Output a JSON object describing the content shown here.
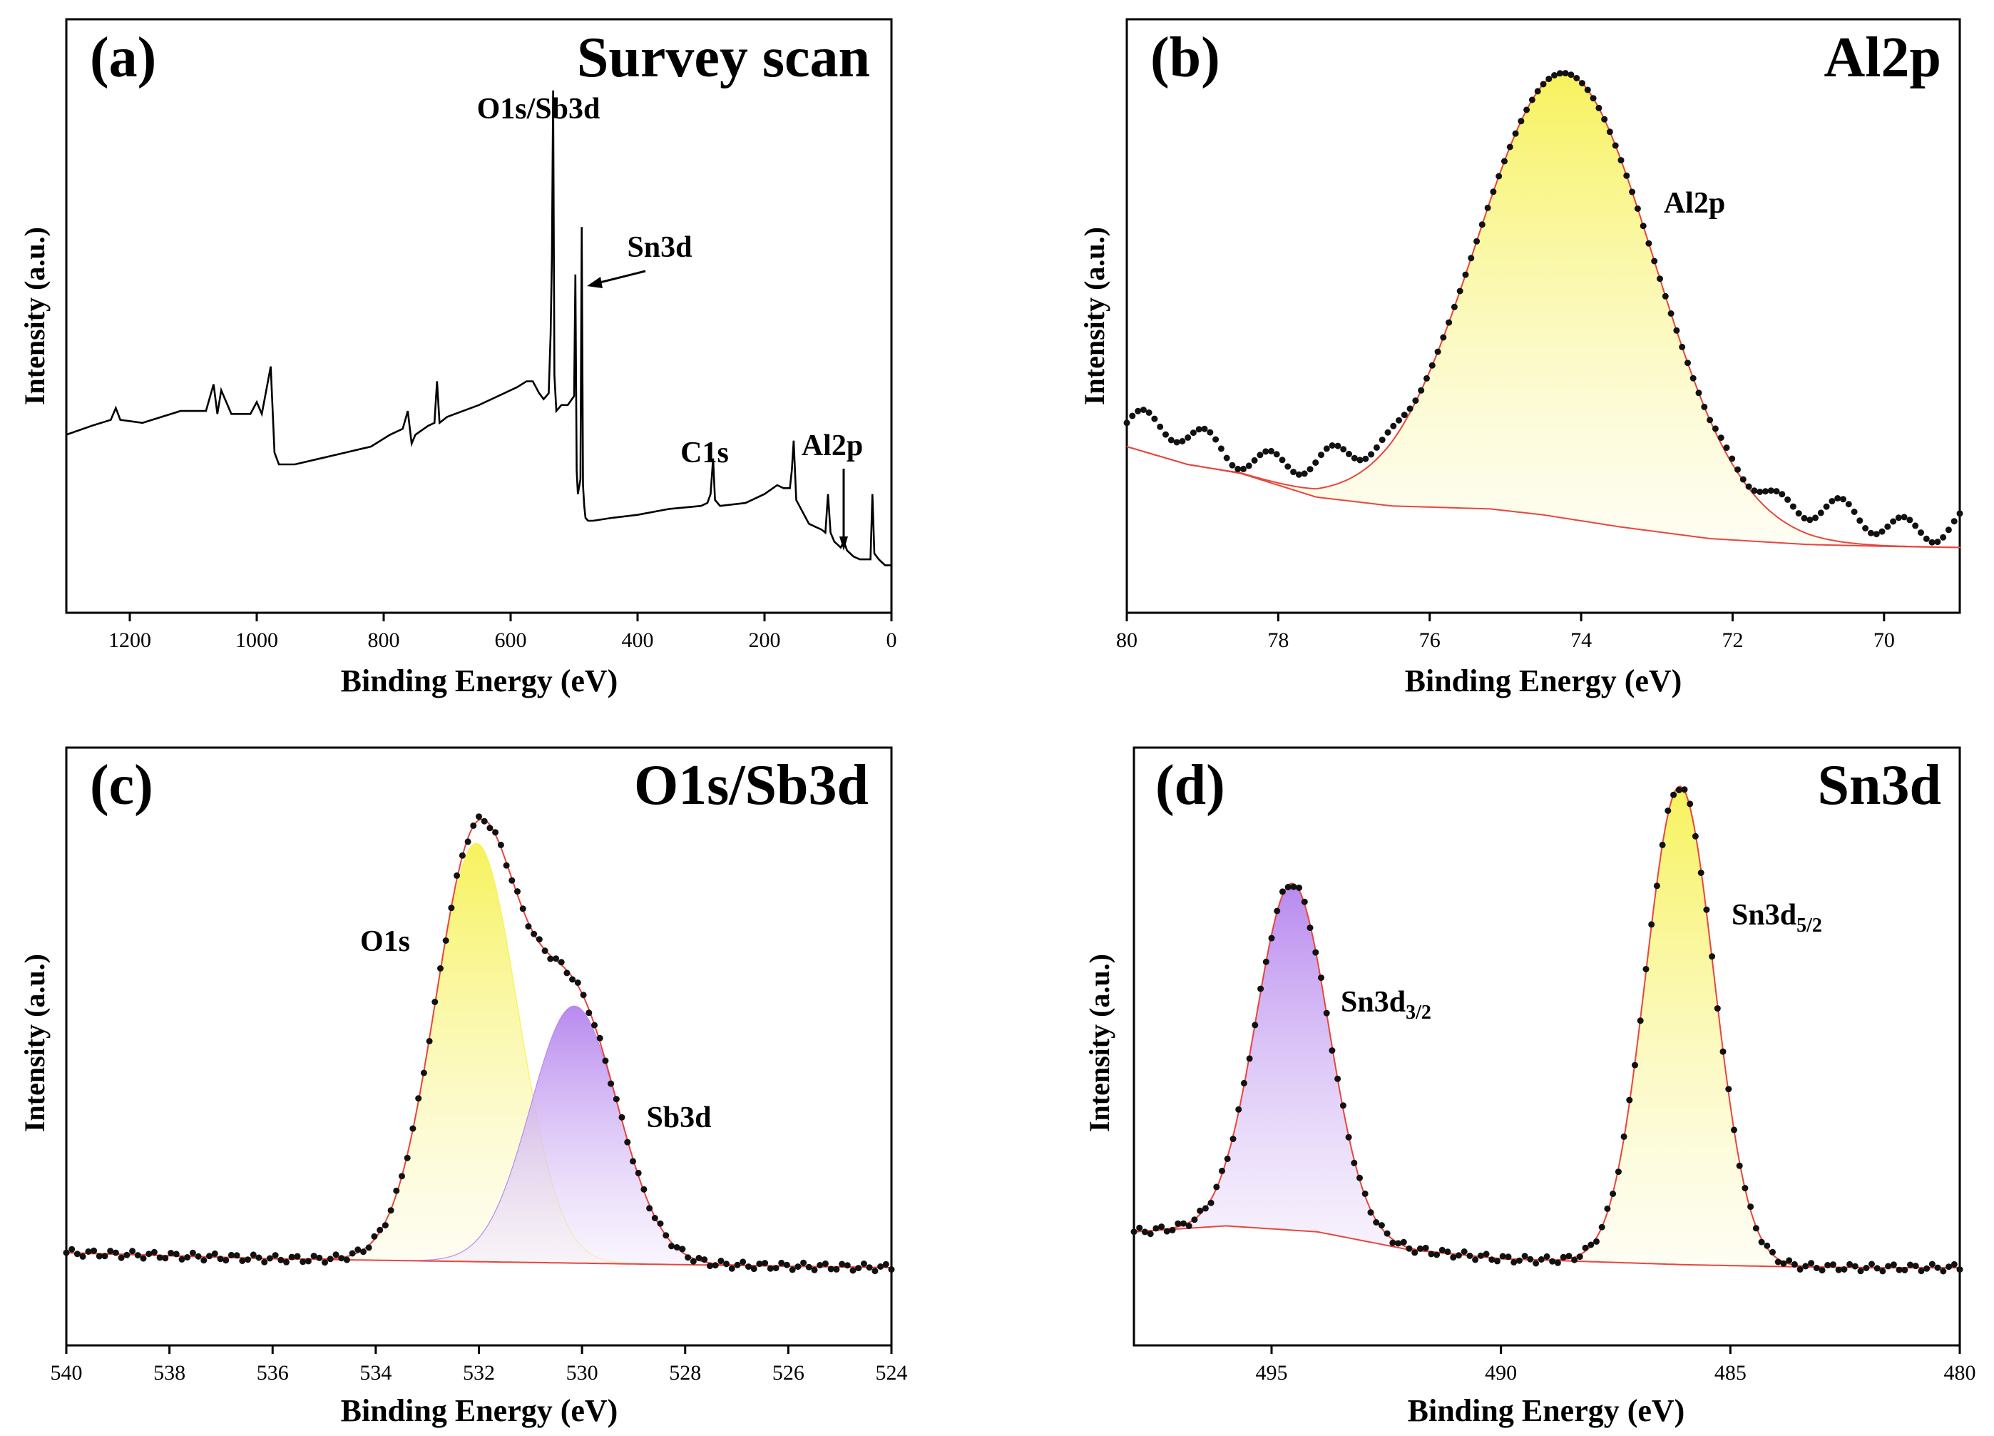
{
  "chart_data": [
    {
      "panel": "(a)",
      "type": "line",
      "title": "Survey scan",
      "xlabel": "Binding Energy (eV)",
      "ylabel": "Intensity (a.u.)",
      "xlim": [
        1300,
        0
      ],
      "ylim": [
        0,
        100
      ],
      "xticks": [
        1200,
        1000,
        800,
        600,
        400,
        200,
        0
      ],
      "series": [
        {
          "name": "survey",
          "x": [
            1300,
            1260,
            1230,
            1222,
            1215,
            1180,
            1120,
            1080,
            1068,
            1062,
            1056,
            1040,
            1010,
            1000,
            992,
            985,
            978,
            972,
            965,
            940,
            900,
            860,
            820,
            790,
            770,
            762,
            756,
            750,
            730,
            720,
            716,
            712,
            700,
            650,
            610,
            590,
            575,
            565,
            555,
            548,
            540,
            537,
            535,
            533,
            531,
            528,
            520,
            510,
            500,
            498,
            496,
            494,
            490,
            488,
            486,
            484,
            482,
            478,
            470,
            440,
            400,
            350,
            300,
            290,
            285,
            281,
            278,
            270,
            230,
            200,
            180,
            170,
            160,
            157,
            154,
            150,
            140,
            130,
            120,
            110,
            104,
            100,
            96,
            90,
            80,
            75,
            70,
            60,
            50,
            40,
            33,
            30,
            27,
            20,
            10,
            0
          ],
          "y": [
            30,
            31.5,
            32.5,
            34.5,
            32.5,
            32,
            34,
            34,
            38.5,
            33.5,
            37.5,
            33.5,
            33.5,
            35.5,
            33.5,
            37.5,
            41.5,
            27,
            25,
            25,
            26,
            27,
            28,
            30,
            31,
            34,
            28.5,
            30,
            31.5,
            32,
            39,
            32,
            33,
            35,
            37,
            38,
            39,
            39,
            37,
            36,
            37,
            47,
            60,
            88,
            40,
            34,
            35,
            35,
            36.5,
            57,
            24,
            20,
            22.5,
            65,
            21.5,
            18,
            16,
            15.5,
            15.5,
            16,
            16.5,
            17.5,
            18,
            18.5,
            20,
            26,
            19,
            18,
            18.5,
            20,
            21.5,
            21,
            21,
            24,
            29,
            19,
            17,
            15,
            14.5,
            14,
            13.5,
            20,
            13.5,
            12,
            11,
            12,
            10.5,
            9.5,
            9,
            9,
            9,
            20,
            10,
            9,
            8,
            8
          ]
        }
      ],
      "annotations": [
        {
          "text": "O1s/Sb3d",
          "x": 531
        },
        {
          "text": "Sn3d",
          "x": 486
        },
        {
          "text": "C1s",
          "x": 285
        },
        {
          "text": "Al2p",
          "x": 74
        }
      ]
    },
    {
      "panel": "(b)",
      "type": "line",
      "title": "Al2p",
      "xlabel": "Binding Energy (eV)",
      "ylabel": "Intensity (a.u.)",
      "xlim": [
        80,
        69
      ],
      "ylim": [
        0,
        100
      ],
      "xticks": [
        80,
        78,
        76,
        74,
        72,
        70
      ],
      "peaks": [
        {
          "name": "Al2p",
          "center": 74.2,
          "height": 75,
          "fwhm": 2.75,
          "fill": "#f7f25c"
        }
      ],
      "baseline": {
        "x": [
          80,
          79.2,
          78.5,
          77.5,
          76.5,
          75.2,
          74.5,
          73.5,
          72.3,
          71,
          70,
          69
        ],
        "y": [
          28,
          25,
          23.5,
          19.5,
          18,
          17.5,
          16.5,
          14.5,
          12.5,
          11.5,
          11.2,
          11
        ]
      },
      "labels": [
        {
          "text": "Al2p",
          "x": 73.2
        }
      ]
    },
    {
      "panel": "(c)",
      "type": "line",
      "title": "O1s/Sb3d",
      "xlabel": "Binding Energy (eV)",
      "ylabel": "Intensity (a.u.)",
      "xlim": [
        540,
        524
      ],
      "ylim": [
        0,
        100
      ],
      "xticks": [
        540,
        538,
        536,
        534,
        532,
        530,
        528,
        526,
        524
      ],
      "peaks": [
        {
          "name": "O1s",
          "center": 532.05,
          "height": 70,
          "fwhm": 1.9,
          "fill": "#f7f25c"
        },
        {
          "name": "Sb3d",
          "center": 530.15,
          "height": 43,
          "fwhm": 2.0,
          "fill": "#b889ef"
        }
      ],
      "baseline": {
        "x": [
          540,
          536,
          532,
          528,
          524
        ],
        "y": [
          15.5,
          14.5,
          14,
          13.5,
          13
        ]
      },
      "labels": [
        {
          "text": "O1s",
          "x": 533.25
        },
        {
          "text": "Sb3d",
          "x": 528.6
        }
      ]
    },
    {
      "panel": "(d)",
      "type": "line",
      "title": "Sn3d",
      "xlabel": "Binding Energy (eV)",
      "ylabel": "Intensity (a.u.)",
      "xlim": [
        498,
        480
      ],
      "ylim": [
        0,
        100
      ],
      "xticks": [
        495,
        490,
        485,
        480
      ],
      "peaks": [
        {
          "name": "Sn3d3/2",
          "center": 494.55,
          "height": 58,
          "fwhm": 1.85,
          "fill": "#b889ef"
        },
        {
          "name": "Sn3d5/2",
          "center": 486.1,
          "height": 80,
          "fwhm": 1.75,
          "fill": "#f7f25c"
        }
      ],
      "baseline": {
        "x": [
          498,
          496,
          494,
          492,
          490,
          488,
          486,
          484,
          482,
          480
        ],
        "y": [
          19,
          20,
          19,
          16,
          14.5,
          14,
          13.5,
          13.2,
          13,
          13
        ]
      },
      "labels": [
        {
          "text": "Sn3d",
          "sub": "3/2",
          "x": 493.1
        },
        {
          "text": "Sn3d",
          "sub": "5/2",
          "x": 484.6
        }
      ]
    }
  ],
  "colors": {
    "data_points": "#111111",
    "envelope": "#e8453c",
    "line": "#000000",
    "arrow": "#000000"
  }
}
